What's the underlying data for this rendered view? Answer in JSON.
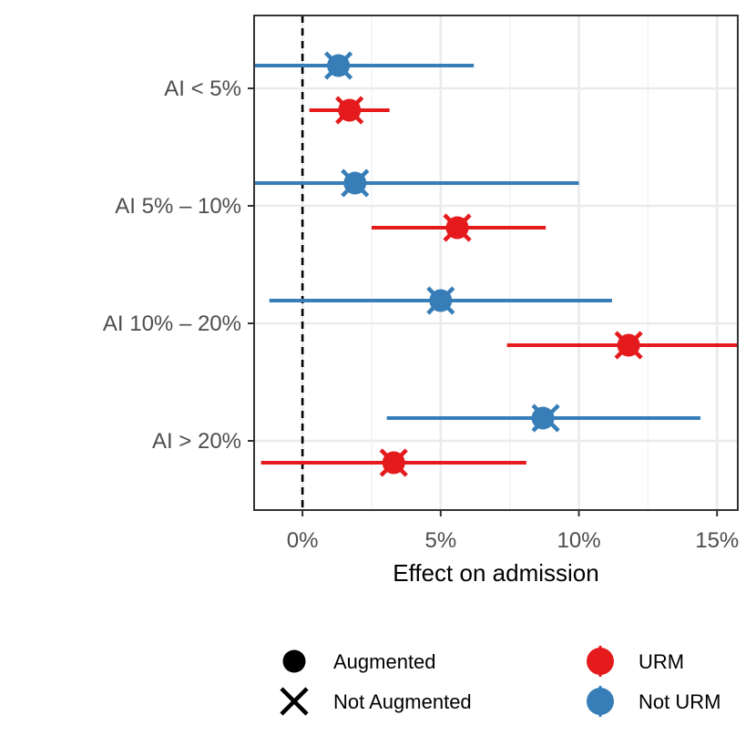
{
  "chart_data": {
    "type": "forest",
    "xlabel": "Effect on admission",
    "ylabel": "",
    "xlim": [
      -1.75,
      15.75
    ],
    "x_ticks": [
      0,
      5,
      10,
      15
    ],
    "x_tick_labels": [
      "0%",
      "5%",
      "10%",
      "15%"
    ],
    "reference_line": 0,
    "categories": [
      "AI < 5%",
      "AI 5% – 10%",
      "AI 10% – 20%",
      "AI > 20%"
    ],
    "grid": true,
    "legend_position": "bottom",
    "series": [
      {
        "name": "Not URM",
        "color": "#377eb8",
        "values": [
          {
            "category": "AI < 5%",
            "augmented": 1.3,
            "not_augmented": 1.3,
            "lo": -1.75,
            "hi": 6.2
          },
          {
            "category": "AI 5% – 10%",
            "augmented": 1.9,
            "not_augmented": 1.9,
            "lo": -1.75,
            "hi": 10.0
          },
          {
            "category": "AI 10% – 20%",
            "augmented": 5.0,
            "not_augmented": 5.0,
            "lo": -1.2,
            "hi": 11.2
          },
          {
            "category": "AI > 20%",
            "augmented": 8.7,
            "not_augmented": 8.8,
            "lo": 3.05,
            "hi": 14.4
          }
        ]
      },
      {
        "name": "URM",
        "color": "#e41a1c",
        "values": [
          {
            "category": "AI < 5%",
            "augmented": 1.7,
            "not_augmented": 1.7,
            "lo": 0.25,
            "hi": 3.15
          },
          {
            "category": "AI 5% – 10%",
            "augmented": 5.6,
            "not_augmented": 5.6,
            "lo": 2.5,
            "hi": 8.8
          },
          {
            "category": "AI 10% – 20%",
            "augmented": 11.8,
            "not_augmented": 11.8,
            "lo": 7.4,
            "hi": 15.75
          },
          {
            "category": "AI > 20%",
            "augmented": 3.3,
            "not_augmented": 3.3,
            "lo": -1.5,
            "hi": 8.1
          }
        ]
      }
    ],
    "legend": {
      "shape": [
        {
          "label": "Augmented",
          "symbol": "circle"
        },
        {
          "label": "Not Augmented",
          "symbol": "cross"
        }
      ],
      "color": [
        {
          "label": "URM",
          "color": "#e41a1c"
        },
        {
          "label": "Not URM",
          "color": "#377eb8"
        }
      ]
    }
  }
}
